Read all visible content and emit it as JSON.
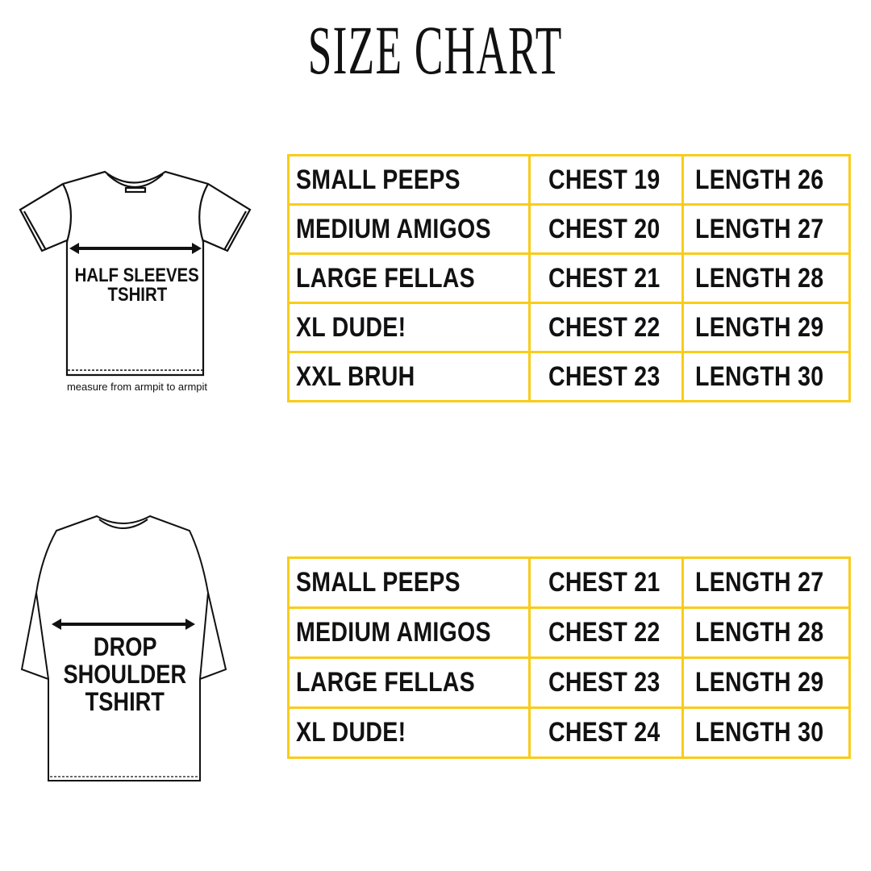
{
  "title": "SIZE CHART",
  "accent_color": "#F9CC1A",
  "half_sleeves": {
    "label_line1": "HALF SLEEVES",
    "label_line2": "TSHIRT",
    "note": "measure from armpit to armpit",
    "rows": [
      {
        "size": "SMALL PEEPS",
        "chest": "CHEST 19",
        "length": "LENGTH 26"
      },
      {
        "size": "MEDIUM AMIGOS",
        "chest": "CHEST 20",
        "length": "LENGTH 27"
      },
      {
        "size": "LARGE FELLAS",
        "chest": "CHEST 21",
        "length": "LENGTH 28"
      },
      {
        "size": "XL DUDE!",
        "chest": "CHEST 22",
        "length": "LENGTH 29"
      },
      {
        "size": "XXL BRUH",
        "chest": "CHEST 23",
        "length": "LENGTH 30"
      }
    ]
  },
  "drop_shoulder": {
    "label_line1": "DROP",
    "label_line2": "SHOULDER",
    "label_line3": "TSHIRT",
    "rows": [
      {
        "size": "SMALL PEEPS",
        "chest": "CHEST 21",
        "length": "LENGTH 27"
      },
      {
        "size": "MEDIUM AMIGOS",
        "chest": "CHEST 22",
        "length": "LENGTH 28"
      },
      {
        "size": "LARGE FELLAS",
        "chest": "CHEST 23",
        "length": "LENGTH 29"
      },
      {
        "size": "XL DUDE!",
        "chest": "CHEST 24",
        "length": "LENGTH 30"
      }
    ]
  }
}
